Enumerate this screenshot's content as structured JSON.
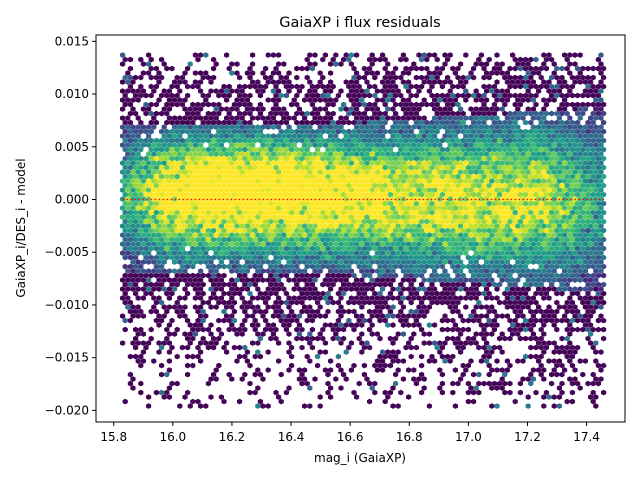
{
  "chart_data": {
    "type": "heatmap",
    "subtype": "hexbin",
    "title": "GaiaXP i flux residuals",
    "xlabel": "mag_i (GaiaXP)",
    "ylabel": "GaiaXP_i/DES_i - model",
    "xlim": [
      15.74,
      17.53
    ],
    "ylim": [
      -0.0211,
      0.0156
    ],
    "x_ticks": [
      15.8,
      16.0,
      16.2,
      16.4,
      16.6,
      16.8,
      17.0,
      17.2,
      17.4
    ],
    "x_tick_labels": [
      "15.8",
      "16.0",
      "16.2",
      "16.4",
      "16.6",
      "16.8",
      "17.0",
      "17.2",
      "17.4"
    ],
    "y_ticks": [
      -0.02,
      -0.015,
      -0.01,
      -0.005,
      0.0,
      0.005,
      0.01,
      0.015
    ],
    "y_tick_labels": [
      "−0.020",
      "−0.015",
      "−0.010",
      "−0.005",
      "0.000",
      "0.005",
      "0.010",
      "0.015"
    ],
    "data_extent": {
      "x": [
        15.83,
        17.46
      ],
      "y": [
        -0.0197,
        0.0137
      ]
    },
    "density_core": {
      "x": [
        15.9,
        17.4
      ],
      "y_center": 0.0,
      "y_halfwidth": 0.0045
    },
    "peak_density_region": {
      "x": [
        16.15,
        16.35
      ],
      "y": [
        0.0005,
        0.003
      ]
    },
    "colormap": "viridis",
    "grid": false,
    "legend": "none",
    "reference_line": {
      "y": 0.0,
      "color": "#ff0000",
      "style": "dotted"
    }
  }
}
